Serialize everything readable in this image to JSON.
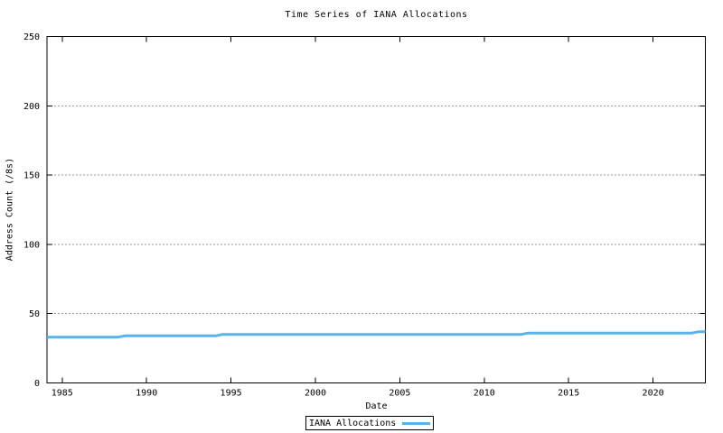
{
  "chart_data": {
    "type": "line",
    "title": "Time Series of IANA Allocations",
    "xlabel": "Date",
    "ylabel": "Address Count (/8s)",
    "xlim": [
      1984.1,
      2023.1
    ],
    "ylim": [
      0,
      250
    ],
    "x_ticks": [
      1985,
      1990,
      1995,
      2000,
      2005,
      2010,
      2015,
      2020
    ],
    "y_ticks": [
      0,
      50,
      100,
      150,
      200,
      250
    ],
    "grid": "horizontal-dotted",
    "grid_color": "#9a9a9a",
    "axis_color": "#000000",
    "legend_position": "bottom-center-outside",
    "series": [
      {
        "name": "IANA Allocations",
        "color": "#56B4E9",
        "line_width": 3,
        "x": [
          1984.1,
          1988.3,
          1988.7,
          1994.1,
          1994.5,
          2012.2,
          2012.6,
          2022.3,
          2022.7,
          2023.1
        ],
        "y": [
          33,
          33,
          34,
          34,
          35,
          35,
          36,
          36,
          37,
          37
        ]
      }
    ]
  }
}
